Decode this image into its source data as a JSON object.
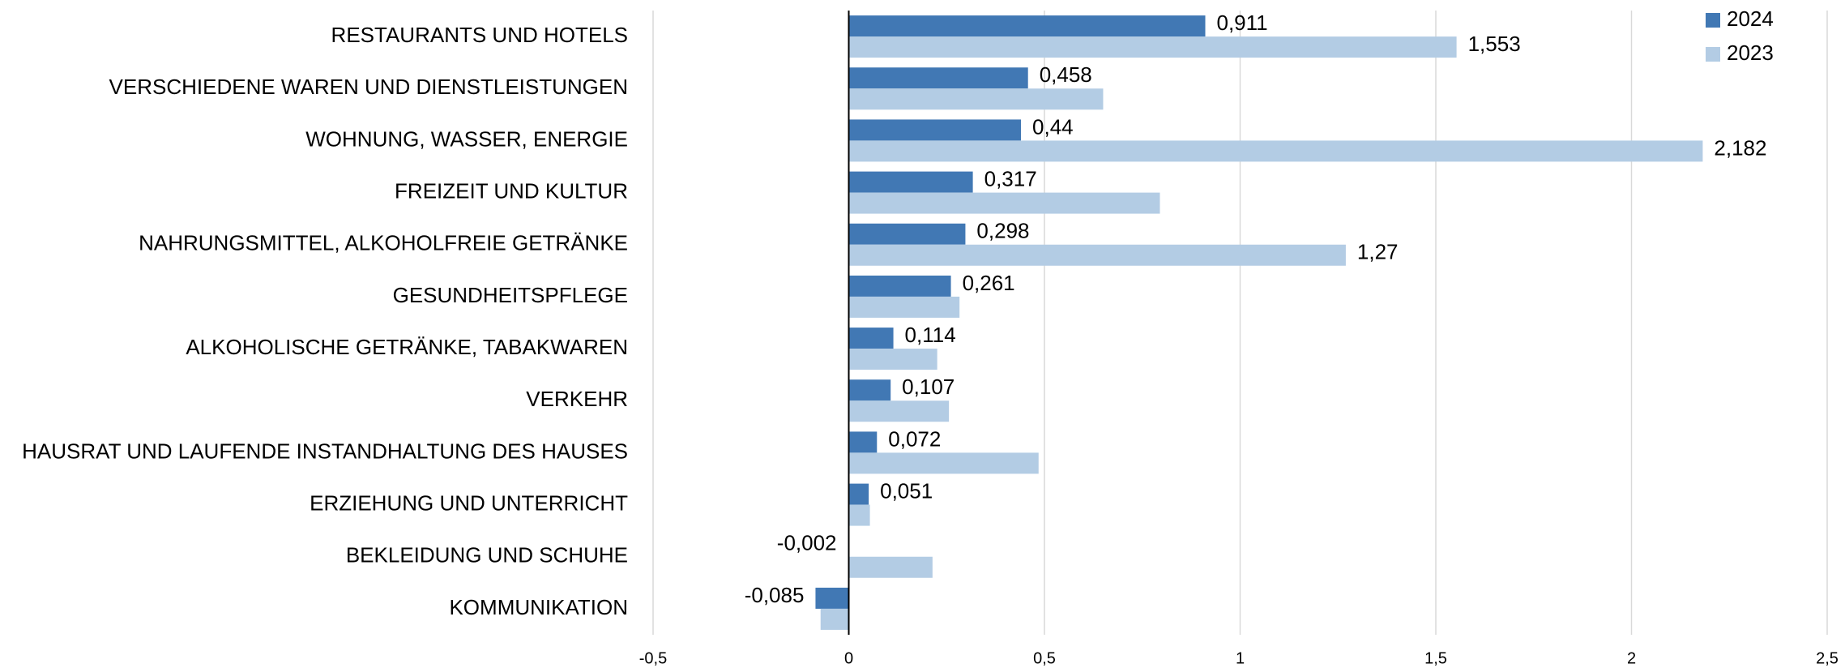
{
  "chart_data": {
    "type": "bar",
    "orientation": "horizontal",
    "categories": [
      "RESTAURANTS UND HOTELS",
      "VERSCHIEDENE WAREN UND DIENSTLEISTUNGEN",
      "WOHNUNG, WASSER, ENERGIE",
      "FREIZEIT UND KULTUR",
      "NAHRUNGSMITTEL, ALKOHOLFREIE GETRÄNKE",
      "GESUNDHEITSPFLEGE",
      "ALKOHOLISCHE GETRÄNKE, TABAKWAREN",
      "VERKEHR",
      "HAUSRAT UND LAUFENDE INSTANDHALTUNG DES HAUSES",
      "ERZIEHUNG UND UNTERRICHT",
      "BEKLEIDUNG UND SCHUHE",
      "KOMMUNIKATION"
    ],
    "series": [
      {
        "name": "2024",
        "color": "#4178b4",
        "values": [
          0.911,
          0.458,
          0.44,
          0.317,
          0.298,
          0.261,
          0.114,
          0.107,
          0.072,
          0.051,
          -0.002,
          -0.085
        ],
        "value_labels": [
          "0,911",
          "0,458",
          "0,44",
          "0,317",
          "0,298",
          "0,261",
          "0,114",
          "0,107",
          "0,072",
          "0,051",
          "-0,002",
          "-0,085"
        ]
      },
      {
        "name": "2023",
        "color": "#b3cce4",
        "values": [
          1.553,
          0.65,
          2.182,
          0.795,
          1.27,
          0.283,
          0.226,
          0.256,
          0.485,
          0.054,
          0.214,
          -0.072
        ],
        "value_labels": [
          "1,553",
          null,
          "2,182",
          null,
          "1,27",
          null,
          null,
          null,
          null,
          null,
          null,
          null
        ]
      }
    ],
    "xlim": [
      -0.5,
      2.5
    ],
    "xticks": [
      {
        "value": -0.5,
        "label": "-0,5"
      },
      0,
      {
        "value": 0.5,
        "label": "0,5"
      },
      1,
      {
        "value": 1.5,
        "label": "1,5"
      },
      2,
      {
        "value": 2.5,
        "label": "2,5"
      }
    ],
    "grid": true,
    "legend": "top-right"
  }
}
